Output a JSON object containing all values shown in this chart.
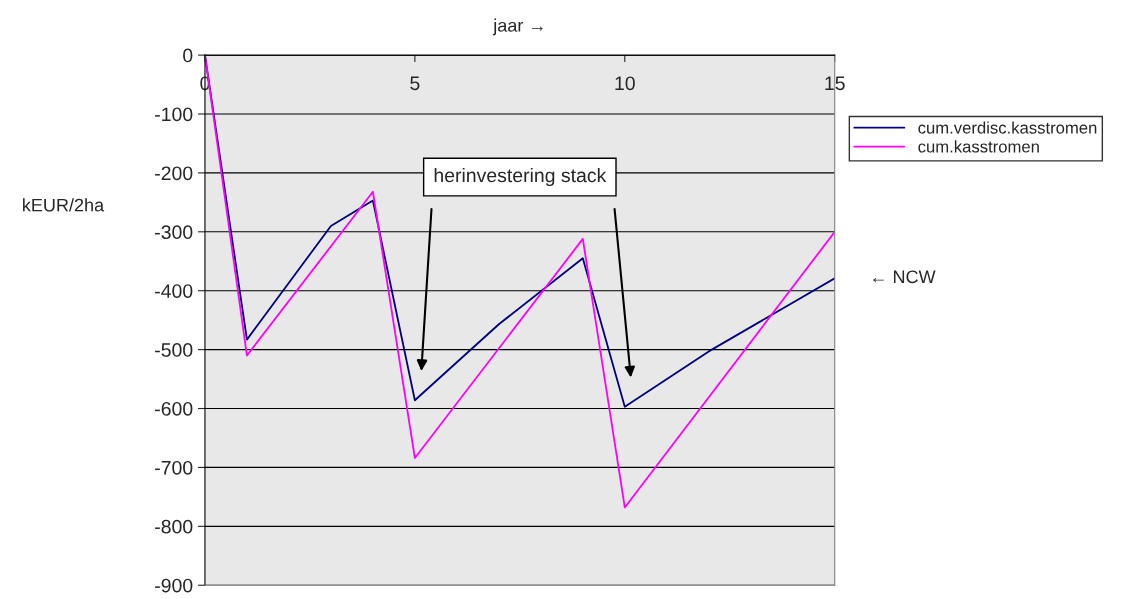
{
  "chart_data": {
    "type": "line",
    "xlabel": "jaar →",
    "ylabel": "kEUR/2ha",
    "xlim": [
      0,
      15
    ],
    "xticks": [
      0,
      5,
      10,
      15
    ],
    "ylim": [
      -900,
      0
    ],
    "yticks": [
      -900,
      -800,
      -700,
      -600,
      -500,
      -400,
      -300,
      -200,
      -100,
      0
    ],
    "grid": "y",
    "legend": "top right",
    "marker": "none",
    "line_style": "solid",
    "series": [
      {
        "name": "cum.verdisc.kasstromen",
        "color": "#000080",
        "x": [
          0,
          1,
          3,
          4,
          5,
          7,
          9,
          10,
          12,
          15
        ],
        "values": [
          0,
          -483,
          -290,
          -247,
          -586,
          -457,
          -345,
          -597,
          -503,
          -379
        ]
      },
      {
        "name": "cum.kasstromen",
        "color": "#ff00ff",
        "x": [
          0,
          1,
          4,
          5,
          9,
          10,
          15
        ],
        "values": [
          0,
          -510,
          -232,
          -684,
          -312,
          -768,
          -300
        ]
      }
    ],
    "annotations": [
      "herinvestering stack",
      {
        "text": "← NCW",
        "x": 15,
        "y": -379
      }
    ]
  }
}
